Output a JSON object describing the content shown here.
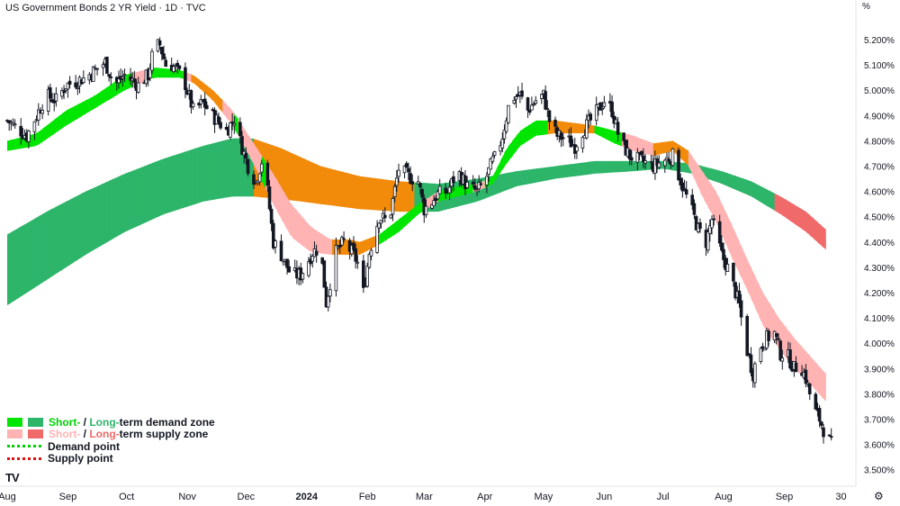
{
  "header": {
    "title": "US Government Bonds 2 YR Yield · 1D · TVC",
    "unit": "%"
  },
  "legend": {
    "demand_short": "Short-",
    "demand_sep": " / ",
    "demand_long": "Long-",
    "demand_rest": "term demand zone",
    "supply_short": "Short-",
    "supply_sep": " / ",
    "supply_long": "Long-",
    "supply_rest": "term supply zone",
    "demand_point": "Demand point",
    "supply_point": "Supply point",
    "colors": {
      "short_demand": "#00e600",
      "long_demand": "#2db56a",
      "short_supply": "#ffb3b3",
      "long_supply": "#f06a6a",
      "mixed_zone": "#f28a0a",
      "demand_point": "#00d000",
      "supply_point": "#e01010"
    }
  },
  "branding": {
    "logo": "TV",
    "logo_icon": "tradingview-logo-icon",
    "settings_icon": "gear-icon"
  },
  "chart_data": {
    "type": "candlestick",
    "y_axis": {
      "ylim": [
        3.5,
        5.3
      ],
      "ticks": [
        "3.500%",
        "3.600%",
        "3.700%",
        "3.800%",
        "3.900%",
        "4.000%",
        "4.100%",
        "4.200%",
        "4.300%",
        "4.400%",
        "4.500%",
        "4.600%",
        "4.700%",
        "4.800%",
        "4.900%",
        "5.000%",
        "5.100%",
        "5.200%"
      ],
      "tick_values": [
        3.5,
        3.6,
        3.7,
        3.8,
        3.9,
        4.0,
        4.1,
        4.2,
        4.3,
        4.4,
        4.5,
        4.6,
        4.7,
        4.8,
        4.9,
        5.0,
        5.1,
        5.2
      ]
    },
    "x_axis": {
      "ticks": [
        "Aug",
        "Sep",
        "Oct",
        "Nov",
        "Dec",
        "2024",
        "Feb",
        "Mar",
        "Apr",
        "May",
        "Jun",
        "Jul",
        "Aug",
        "Sep",
        "30"
      ],
      "tick_days": [
        0,
        31,
        61,
        92,
        122,
        153,
        184,
        213,
        244,
        274,
        305,
        335,
        366,
        397,
        426
      ]
    },
    "series": [
      {
        "name": "US Government Bonds 2 YR Yield",
        "anchors": [
          [
            0,
            4.88
          ],
          [
            10,
            4.82
          ],
          [
            15,
            4.9
          ],
          [
            20,
            4.98
          ],
          [
            25,
            4.96
          ],
          [
            30,
            5.02
          ],
          [
            40,
            5.05
          ],
          [
            50,
            5.11
          ],
          [
            55,
            5.02
          ],
          [
            60,
            5.06
          ],
          [
            67,
            5.02
          ],
          [
            72,
            5.06
          ],
          [
            75,
            5.17
          ],
          [
            78,
            5.18
          ],
          [
            81,
            5.1
          ],
          [
            84,
            5.1
          ],
          [
            90,
            5.05
          ],
          [
            95,
            4.92
          ],
          [
            100,
            4.95
          ],
          [
            105,
            4.9
          ],
          [
            112,
            4.84
          ],
          [
            117,
            4.9
          ],
          [
            119,
            4.8
          ],
          [
            123,
            4.7
          ],
          [
            127,
            4.64
          ],
          [
            130,
            4.72
          ],
          [
            133,
            4.6
          ],
          [
            136,
            4.4
          ],
          [
            140,
            4.35
          ],
          [
            145,
            4.27
          ],
          [
            150,
            4.27
          ],
          [
            156,
            4.36
          ],
          [
            160,
            4.38
          ],
          [
            163,
            4.16
          ],
          [
            168,
            4.36
          ],
          [
            172,
            4.4
          ],
          [
            177,
            4.35
          ],
          [
            180,
            4.3
          ],
          [
            182,
            4.2
          ],
          [
            185,
            4.36
          ],
          [
            190,
            4.5
          ],
          [
            195,
            4.48
          ],
          [
            200,
            4.69
          ],
          [
            205,
            4.66
          ],
          [
            210,
            4.64
          ],
          [
            213,
            4.53
          ],
          [
            217,
            4.56
          ],
          [
            220,
            4.59
          ],
          [
            225,
            4.6
          ],
          [
            230,
            4.68
          ],
          [
            235,
            4.62
          ],
          [
            240,
            4.6
          ],
          [
            244,
            4.64
          ],
          [
            248,
            4.72
          ],
          [
            250,
            4.74
          ],
          [
            253,
            4.82
          ],
          [
            257,
            4.97
          ],
          [
            262,
            4.98
          ],
          [
            266,
            4.92
          ],
          [
            270,
            4.96
          ],
          [
            274,
            4.98
          ],
          [
            277,
            4.88
          ],
          [
            281,
            4.82
          ],
          [
            285,
            4.81
          ],
          [
            290,
            4.78
          ],
          [
            294,
            4.84
          ],
          [
            300,
            4.9
          ],
          [
            305,
            4.96
          ],
          [
            309,
            4.92
          ],
          [
            313,
            4.8
          ],
          [
            318,
            4.74
          ],
          [
            324,
            4.72
          ],
          [
            330,
            4.7
          ],
          [
            335,
            4.72
          ],
          [
            340,
            4.74
          ],
          [
            345,
            4.62
          ],
          [
            350,
            4.52
          ],
          [
            353,
            4.45
          ],
          [
            357,
            4.4
          ],
          [
            360,
            4.49
          ],
          [
            365,
            4.35
          ],
          [
            369,
            4.28
          ],
          [
            374,
            4.15
          ],
          [
            377,
            4.0
          ],
          [
            381,
            3.88
          ],
          [
            384,
            3.98
          ],
          [
            388,
            4.02
          ],
          [
            392,
            4.04
          ],
          [
            395,
            3.96
          ],
          [
            398,
            3.96
          ],
          [
            402,
            3.9
          ],
          [
            405,
            3.92
          ],
          [
            408,
            3.86
          ],
          [
            412,
            3.74
          ],
          [
            415,
            3.7
          ],
          [
            418,
            3.64
          ],
          [
            421,
            3.6
          ]
        ]
      },
      {
        "name": "Short-term zone",
        "upper": [
          [
            0,
            4.8
          ],
          [
            15,
            4.83
          ],
          [
            30,
            4.92
          ],
          [
            45,
            4.98
          ],
          [
            60,
            5.06
          ],
          [
            75,
            5.09
          ],
          [
            88,
            5.08
          ],
          [
            95,
            5.06
          ],
          [
            105,
            5.0
          ],
          [
            115,
            4.92
          ],
          [
            125,
            4.8
          ],
          [
            135,
            4.68
          ],
          [
            145,
            4.55
          ],
          [
            155,
            4.46
          ],
          [
            165,
            4.41
          ],
          [
            175,
            4.41
          ],
          [
            180,
            4.4
          ],
          [
            190,
            4.43
          ],
          [
            200,
            4.49
          ],
          [
            210,
            4.55
          ],
          [
            220,
            4.6
          ],
          [
            230,
            4.62
          ],
          [
            240,
            4.63
          ],
          [
            248,
            4.66
          ],
          [
            255,
            4.77
          ],
          [
            262,
            4.84
          ],
          [
            270,
            4.88
          ],
          [
            280,
            4.88
          ],
          [
            290,
            4.87
          ],
          [
            300,
            4.86
          ],
          [
            310,
            4.84
          ],
          [
            320,
            4.82
          ],
          [
            330,
            4.79
          ],
          [
            340,
            4.8
          ],
          [
            348,
            4.76
          ],
          [
            355,
            4.68
          ],
          [
            362,
            4.6
          ],
          [
            370,
            4.47
          ],
          [
            378,
            4.33
          ],
          [
            386,
            4.2
          ],
          [
            394,
            4.1
          ],
          [
            402,
            4.02
          ],
          [
            410,
            3.95
          ],
          [
            418,
            3.88
          ]
        ],
        "lower": [
          [
            0,
            4.76
          ],
          [
            15,
            4.78
          ],
          [
            30,
            4.86
          ],
          [
            45,
            4.93
          ],
          [
            60,
            5.0
          ],
          [
            75,
            5.05
          ],
          [
            88,
            5.05
          ],
          [
            95,
            5.03
          ],
          [
            105,
            4.96
          ],
          [
            115,
            4.86
          ],
          [
            125,
            4.72
          ],
          [
            135,
            4.56
          ],
          [
            145,
            4.42
          ],
          [
            155,
            4.36
          ],
          [
            165,
            4.35
          ],
          [
            175,
            4.35
          ],
          [
            180,
            4.35
          ],
          [
            190,
            4.39
          ],
          [
            200,
            4.44
          ],
          [
            210,
            4.51
          ],
          [
            220,
            4.56
          ],
          [
            230,
            4.58
          ],
          [
            240,
            4.6
          ],
          [
            248,
            4.63
          ],
          [
            255,
            4.71
          ],
          [
            262,
            4.78
          ],
          [
            270,
            4.82
          ],
          [
            280,
            4.83
          ],
          [
            290,
            4.83
          ],
          [
            300,
            4.83
          ],
          [
            310,
            4.79
          ],
          [
            320,
            4.76
          ],
          [
            330,
            4.74
          ],
          [
            340,
            4.76
          ],
          [
            348,
            4.7
          ],
          [
            355,
            4.58
          ],
          [
            362,
            4.48
          ],
          [
            370,
            4.34
          ],
          [
            378,
            4.21
          ],
          [
            386,
            4.07
          ],
          [
            394,
            3.98
          ],
          [
            402,
            3.9
          ],
          [
            410,
            3.84
          ],
          [
            418,
            3.77
          ]
        ]
      },
      {
        "name": "Long-term zone",
        "upper": [
          [
            0,
            4.43
          ],
          [
            20,
            4.52
          ],
          [
            40,
            4.6
          ],
          [
            60,
            4.67
          ],
          [
            80,
            4.73
          ],
          [
            100,
            4.78
          ],
          [
            115,
            4.81
          ],
          [
            125,
            4.81
          ],
          [
            140,
            4.77
          ],
          [
            160,
            4.7
          ],
          [
            180,
            4.66
          ],
          [
            200,
            4.64
          ],
          [
            220,
            4.63
          ],
          [
            240,
            4.65
          ],
          [
            260,
            4.68
          ],
          [
            280,
            4.7
          ],
          [
            300,
            4.72
          ],
          [
            320,
            4.72
          ],
          [
            335,
            4.72
          ],
          [
            350,
            4.71
          ],
          [
            365,
            4.68
          ],
          [
            380,
            4.64
          ],
          [
            395,
            4.58
          ],
          [
            408,
            4.52
          ],
          [
            418,
            4.45
          ]
        ],
        "lower": [
          [
            0,
            4.15
          ],
          [
            20,
            4.25
          ],
          [
            40,
            4.35
          ],
          [
            60,
            4.44
          ],
          [
            80,
            4.51
          ],
          [
            100,
            4.56
          ],
          [
            115,
            4.58
          ],
          [
            125,
            4.58
          ],
          [
            140,
            4.57
          ],
          [
            160,
            4.55
          ],
          [
            180,
            4.53
          ],
          [
            200,
            4.52
          ],
          [
            220,
            4.52
          ],
          [
            240,
            4.56
          ],
          [
            260,
            4.62
          ],
          [
            280,
            4.65
          ],
          [
            300,
            4.67
          ],
          [
            320,
            4.68
          ],
          [
            335,
            4.69
          ],
          [
            350,
            4.67
          ],
          [
            365,
            4.63
          ],
          [
            380,
            4.58
          ],
          [
            395,
            4.51
          ],
          [
            408,
            4.44
          ],
          [
            418,
            4.37
          ]
        ]
      }
    ]
  }
}
